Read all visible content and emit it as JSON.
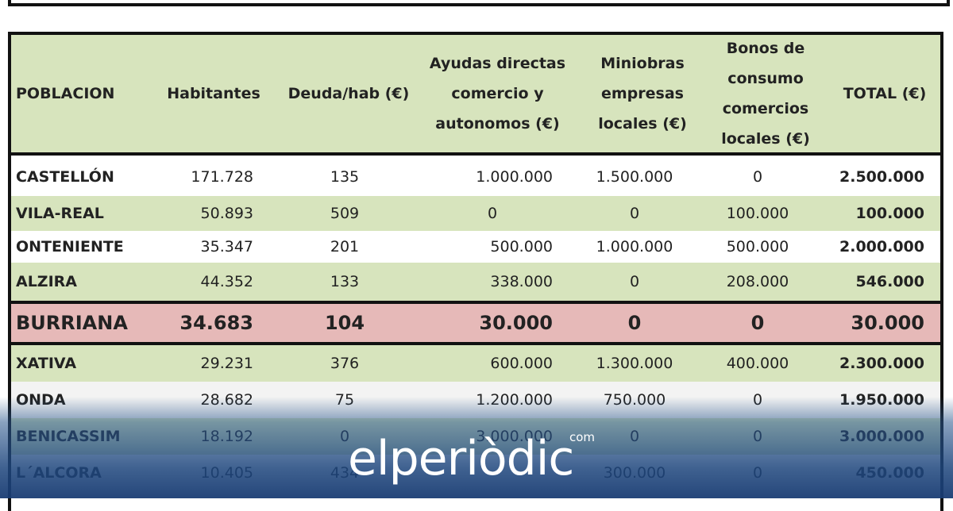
{
  "table": {
    "headers": {
      "poblacion": "POBLACION",
      "habitantes": "Habitantes",
      "deuda": "Deuda/hab (€)",
      "ayudas": "Ayudas directas comercio y autonomos (€)",
      "miniobras": "Miniobras empresas locales (€)",
      "bonos": "Bonos de consumo comercios locales (€)",
      "total": "TOTAL (€)"
    },
    "rows": [
      {
        "name": "CASTELLÓN",
        "habitantes": "171.728",
        "deuda": "135",
        "ayudas": "1.000.000",
        "miniobras": "1.500.000",
        "bonos": "0",
        "total": "2.500.000"
      },
      {
        "name": "VILA-REAL",
        "habitantes": "50.893",
        "deuda": "509",
        "ayudas": "0",
        "miniobras": "0",
        "bonos": "100.000",
        "total": "100.000"
      },
      {
        "name": "ONTENIENTE",
        "habitantes": "35.347",
        "deuda": "201",
        "ayudas": "500.000",
        "miniobras": "1.000.000",
        "bonos": "500.000",
        "total": "2.000.000"
      },
      {
        "name": "ALZIRA",
        "habitantes": "44.352",
        "deuda": "133",
        "ayudas": "338.000",
        "miniobras": "0",
        "bonos": "208.000",
        "total": "546.000"
      },
      {
        "name": "BURRIANA",
        "habitantes": "34.683",
        "deuda": "104",
        "ayudas": "30.000",
        "miniobras": "0",
        "bonos": "0",
        "total": "30.000"
      },
      {
        "name": "XATIVA",
        "habitantes": "29.231",
        "deuda": "376",
        "ayudas": "600.000",
        "miniobras": "1.300.000",
        "bonos": "400.000",
        "total": "2.300.000"
      },
      {
        "name": "ONDA",
        "habitantes": "28.682",
        "deuda": "75",
        "ayudas": "1.200.000",
        "miniobras": "750.000",
        "bonos": "0",
        "total": "1.950.000"
      },
      {
        "name": "BENICASSIM",
        "habitantes": "18.192",
        "deuda": "0",
        "ayudas": "3.000.000",
        "miniobras": "0",
        "bonos": "0",
        "total": "3.000.000"
      },
      {
        "name": "L´ALCORA",
        "habitantes": "10.405",
        "deuda": "434",
        "ayudas": "",
        "miniobras": "300.000",
        "bonos": "0",
        "total": "450.000"
      }
    ]
  },
  "watermark": {
    "brand": "elperiòdic",
    "suffix": "com"
  },
  "colors": {
    "header_bg": "#d7e4bd",
    "highlight_bg": "#e6b9b8"
  }
}
